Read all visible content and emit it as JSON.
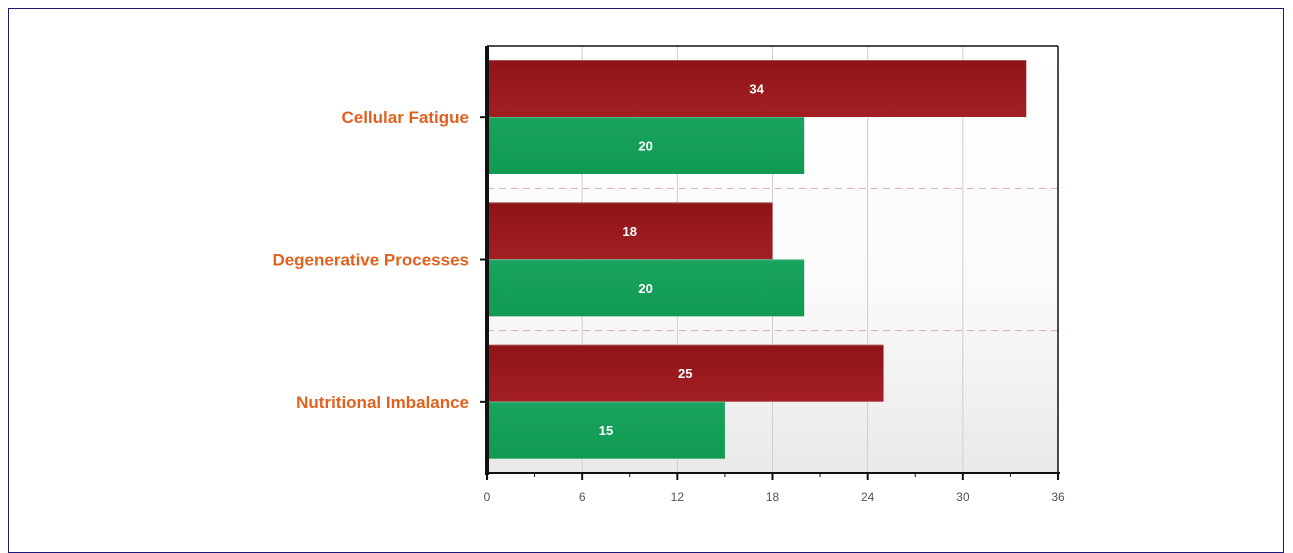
{
  "chart_data": {
    "type": "bar",
    "orientation": "horizontal",
    "categories": [
      "Cellular Fatigue",
      "Degenerative Processes",
      "Nutritional Imbalance"
    ],
    "series": [
      {
        "values": [
          34,
          18,
          25
        ],
        "color": "#9e1a1e"
      },
      {
        "values": [
          20,
          20,
          15
        ],
        "color": "#17a05a"
      }
    ],
    "xlim": [
      0,
      36
    ],
    "xticks": [
      0,
      6,
      12,
      18,
      24,
      30,
      36
    ],
    "grid": true,
    "data_labels": true,
    "legend": "none",
    "title": "",
    "xlabel": "",
    "ylabel": "",
    "colors": {
      "category_label": "#e0621e",
      "grid": "#cfcfcf",
      "separator": "#e0a8c0",
      "axis": "#111111",
      "frame": "#1a1a7a"
    }
  }
}
